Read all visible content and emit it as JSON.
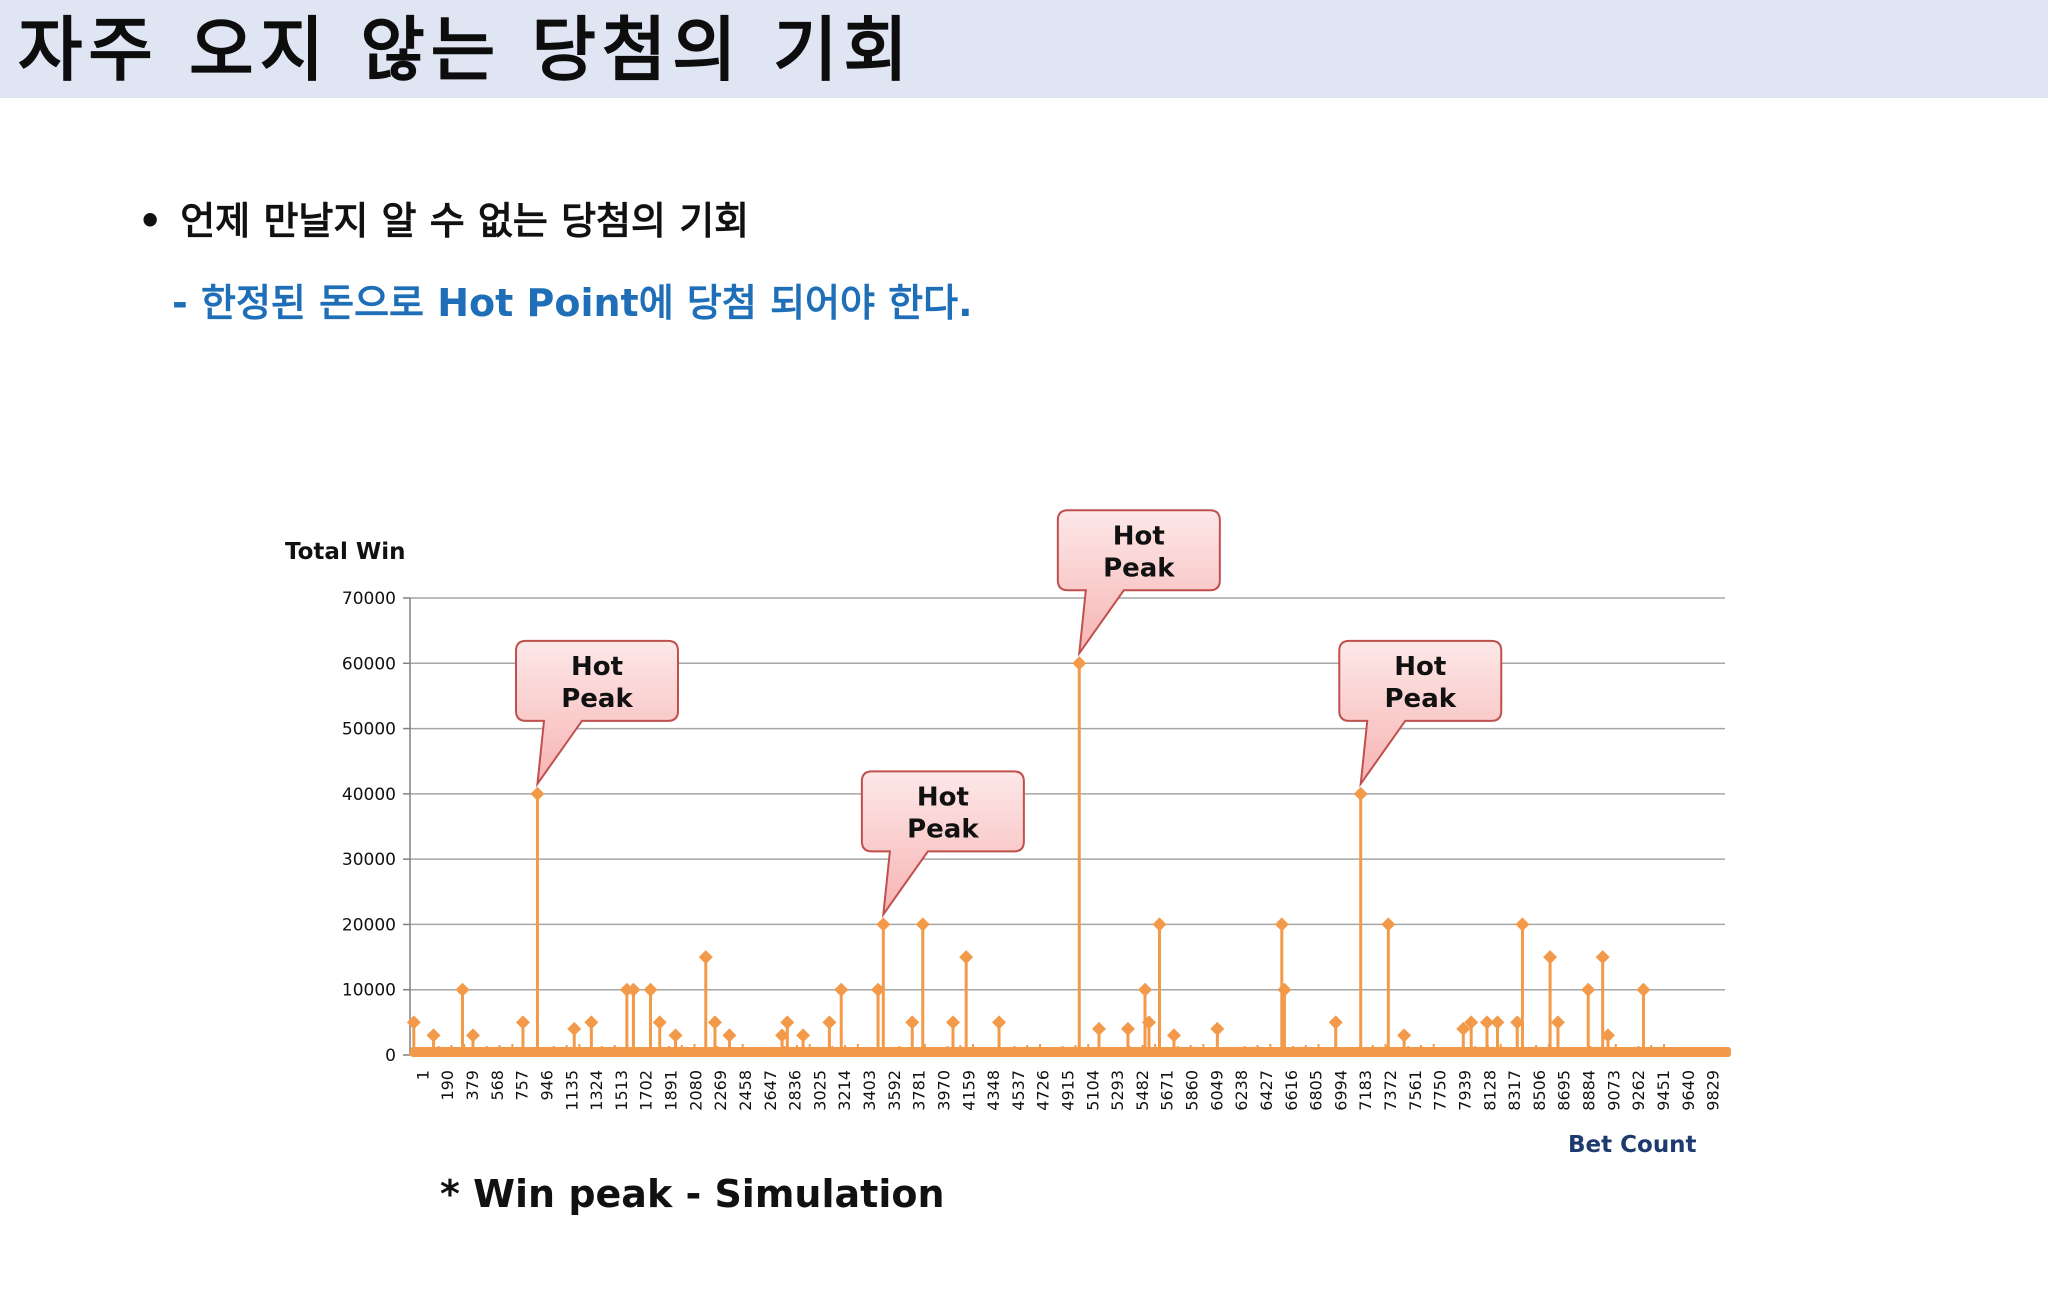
{
  "slide": {
    "title": "자주 오지 않는 당첨의 기회",
    "bullet": "언제 만날지 알 수 없는 당첨의 기회",
    "bullet_marker": "•",
    "sub_point": "- 한정된 돈으로 Hot Point에 당첨 되어야 한다.",
    "caption": "* Win peak - Simulation"
  },
  "chart_data": {
    "type": "line",
    "title": "",
    "ylabel": "Total Win",
    "xlabel": "Bet Count",
    "ylim": [
      0,
      70000
    ],
    "xlim": [
      1,
      10000
    ],
    "y_ticks": [
      0,
      10000,
      20000,
      30000,
      40000,
      50000,
      60000,
      70000
    ],
    "x_tick_labels": [
      "1",
      "190",
      "379",
      "568",
      "757",
      "946",
      "1135",
      "1324",
      "1513",
      "1702",
      "1891",
      "2080",
      "2269",
      "2458",
      "2647",
      "2836",
      "3025",
      "3214",
      "3403",
      "3592",
      "3781",
      "3970",
      "4159",
      "4348",
      "4537",
      "4726",
      "4915",
      "5104",
      "5293",
      "5482",
      "5671",
      "5860",
      "6049",
      "6238",
      "6427",
      "6616",
      "6805",
      "6994",
      "7183",
      "7372",
      "7561",
      "7750",
      "7939",
      "8128",
      "8317",
      "8506",
      "8695",
      "8884",
      "9073",
      "9262",
      "9451",
      "9640",
      "9829"
    ],
    "grid": true,
    "legend": "none",
    "series_color": "#f39a4a",
    "points": [
      {
        "x": 30,
        "y": 5000
      },
      {
        "x": 180,
        "y": 3000
      },
      {
        "x": 400,
        "y": 10000
      },
      {
        "x": 480,
        "y": 3000
      },
      {
        "x": 860,
        "y": 5000
      },
      {
        "x": 970,
        "y": 40000
      },
      {
        "x": 1250,
        "y": 4000
      },
      {
        "x": 1380,
        "y": 5000
      },
      {
        "x": 1650,
        "y": 10000
      },
      {
        "x": 1700,
        "y": 10000
      },
      {
        "x": 1830,
        "y": 10000
      },
      {
        "x": 1900,
        "y": 5000
      },
      {
        "x": 2020,
        "y": 3000
      },
      {
        "x": 2250,
        "y": 15000
      },
      {
        "x": 2320,
        "y": 5000
      },
      {
        "x": 2430,
        "y": 3000
      },
      {
        "x": 2830,
        "y": 3000
      },
      {
        "x": 2870,
        "y": 5000
      },
      {
        "x": 2990,
        "y": 3000
      },
      {
        "x": 3190,
        "y": 5000
      },
      {
        "x": 3280,
        "y": 10000
      },
      {
        "x": 3560,
        "y": 10000
      },
      {
        "x": 3600,
        "y": 20000
      },
      {
        "x": 3820,
        "y": 5000
      },
      {
        "x": 3900,
        "y": 20000
      },
      {
        "x": 4130,
        "y": 5000
      },
      {
        "x": 4230,
        "y": 15000
      },
      {
        "x": 4480,
        "y": 5000
      },
      {
        "x": 5090,
        "y": 60000
      },
      {
        "x": 5240,
        "y": 4000
      },
      {
        "x": 5460,
        "y": 4000
      },
      {
        "x": 5590,
        "y": 10000
      },
      {
        "x": 5620,
        "y": 5000
      },
      {
        "x": 5700,
        "y": 20000
      },
      {
        "x": 5810,
        "y": 3000
      },
      {
        "x": 6140,
        "y": 4000
      },
      {
        "x": 6630,
        "y": 20000
      },
      {
        "x": 6650,
        "y": 10000
      },
      {
        "x": 7040,
        "y": 5000
      },
      {
        "x": 7230,
        "y": 40000
      },
      {
        "x": 7440,
        "y": 20000
      },
      {
        "x": 7560,
        "y": 3000
      },
      {
        "x": 8010,
        "y": 4000
      },
      {
        "x": 8070,
        "y": 5000
      },
      {
        "x": 8190,
        "y": 5000
      },
      {
        "x": 8270,
        "y": 5000
      },
      {
        "x": 8420,
        "y": 5000
      },
      {
        "x": 8460,
        "y": 20000
      },
      {
        "x": 8670,
        "y": 15000
      },
      {
        "x": 8730,
        "y": 5000
      },
      {
        "x": 8960,
        "y": 10000
      },
      {
        "x": 9070,
        "y": 15000
      },
      {
        "x": 9110,
        "y": 3000
      },
      {
        "x": 9380,
        "y": 10000
      }
    ],
    "annotations": [
      {
        "text": [
          "Hot",
          "Peak"
        ],
        "x": 970,
        "y": 40000
      },
      {
        "text": [
          "Hot",
          "Peak"
        ],
        "x": 3600,
        "y": 20000
      },
      {
        "text": [
          "Hot",
          "Peak"
        ],
        "x": 5090,
        "y": 60000
      },
      {
        "text": [
          "Hot",
          "Peak"
        ],
        "x": 7230,
        "y": 40000
      }
    ]
  }
}
